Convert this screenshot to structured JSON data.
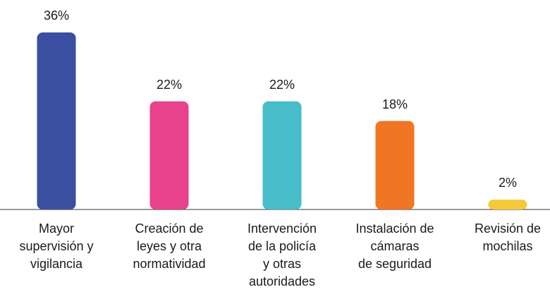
{
  "chart_data": {
    "type": "bar",
    "categories": [
      "Mayor\nsupervisión y\nvigilancia",
      "Creación de\nleyes y otra\nnormatividad",
      "Intervención\nde la policía\ny otras\nautoridades",
      "Instalación de\ncámaras\nde seguridad",
      "Revisión de\nmochilas"
    ],
    "values": [
      36,
      22,
      22,
      18,
      2
    ],
    "value_labels": [
      "36%",
      "22%",
      "22%",
      "18%",
      "2%"
    ],
    "colors": [
      "#3b4fa1",
      "#e8428c",
      "#47bdc9",
      "#f07623",
      "#f6c93b"
    ],
    "ylim": [
      0,
      36
    ]
  }
}
